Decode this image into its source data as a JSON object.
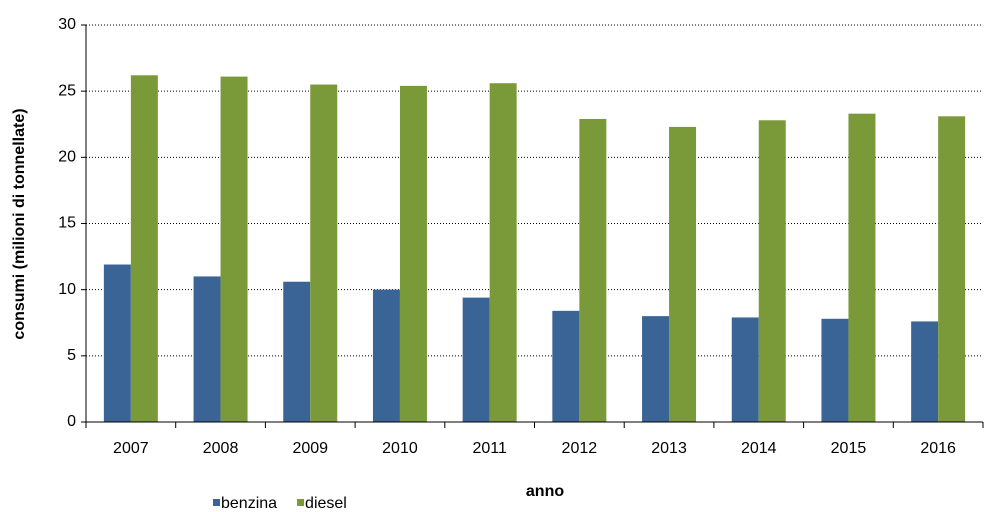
{
  "chart_data": {
    "type": "bar",
    "x_label": "anno",
    "y_label": "consumi (milioni di tonnellate)",
    "categories": [
      "2007",
      "2008",
      "2009",
      "2010",
      "2011",
      "2012",
      "2013",
      "2014",
      "2015",
      "2016"
    ],
    "series": [
      {
        "name": "benzina",
        "color": "#3a6496",
        "values": [
          11.9,
          11.0,
          10.6,
          10.0,
          9.4,
          8.4,
          8.0,
          7.9,
          7.8,
          7.6
        ]
      },
      {
        "name": "diesel",
        "color": "#7a9a3a",
        "values": [
          26.2,
          26.1,
          25.5,
          25.4,
          25.6,
          22.9,
          22.3,
          22.8,
          23.3,
          23.1
        ]
      }
    ],
    "ylim": [
      0,
      30
    ],
    "yticks": [
      0,
      5,
      10,
      15,
      20,
      25,
      30
    ],
    "grid": true,
    "legend": "bottom-left"
  }
}
